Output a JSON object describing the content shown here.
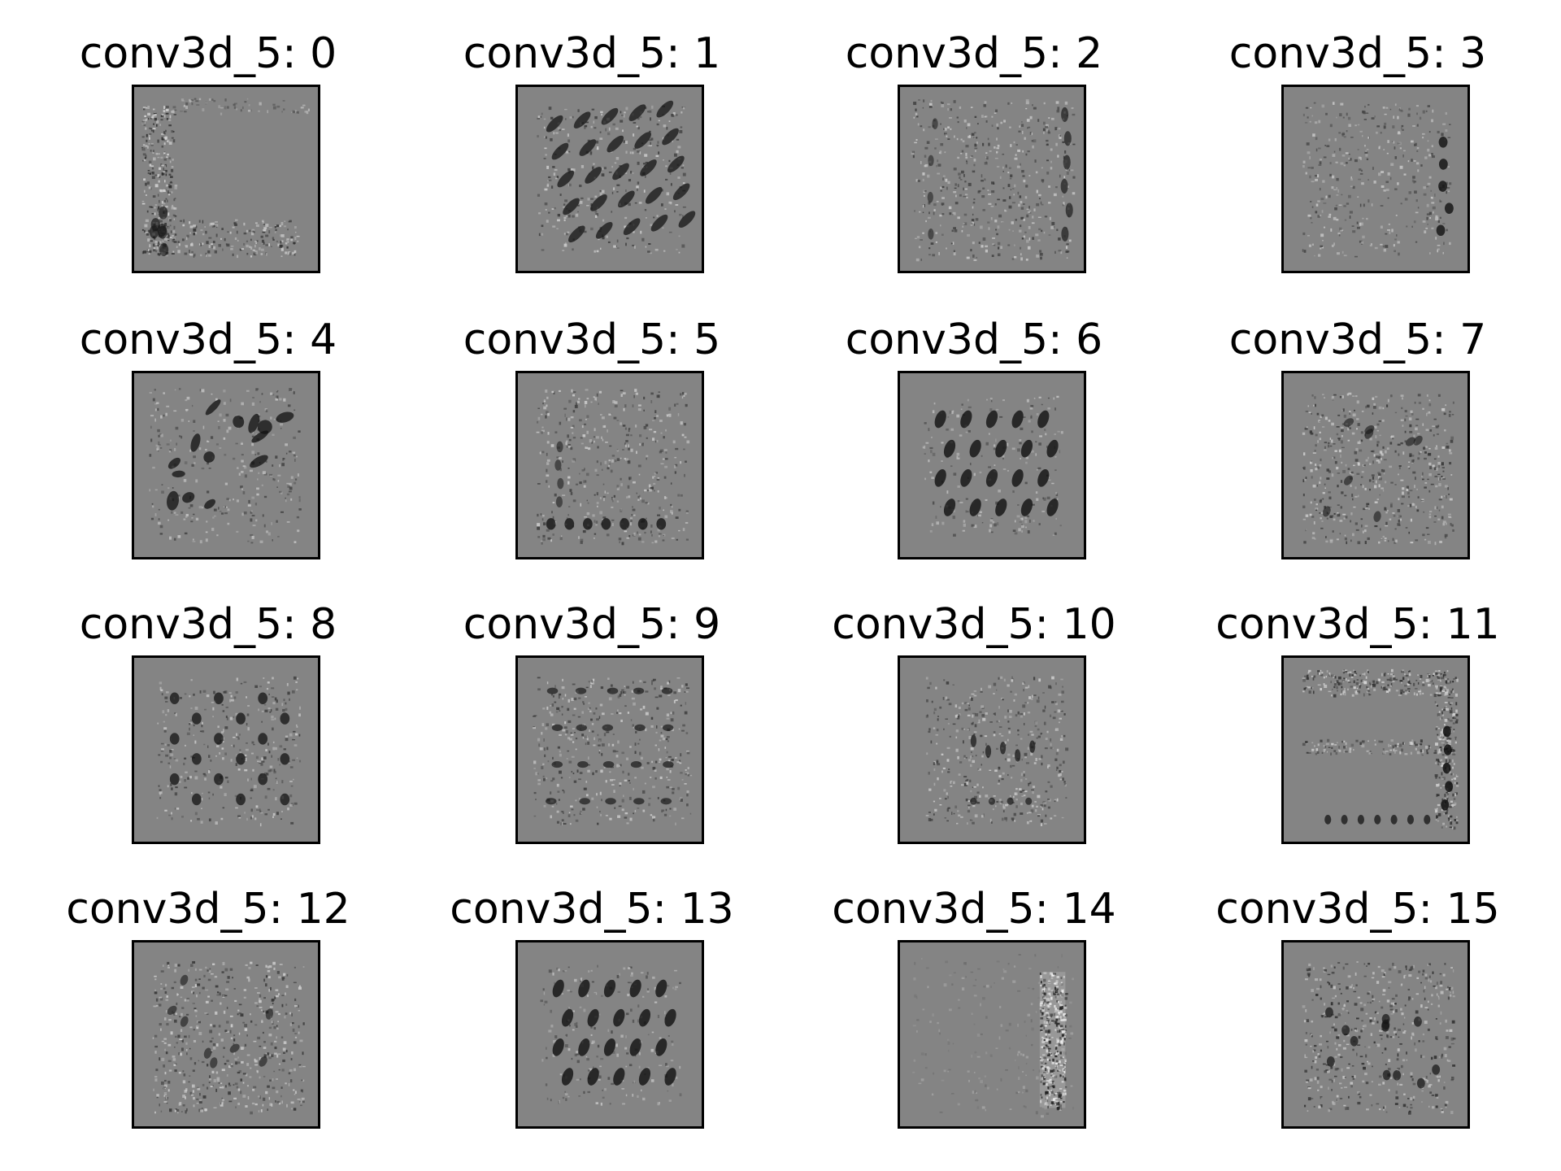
{
  "figure": {
    "panels": [
      {
        "title": "conv3d_5: 0",
        "pattern": "left-bottom-border"
      },
      {
        "title": "conv3d_5: 1",
        "pattern": "diagonal-streaks"
      },
      {
        "title": "conv3d_5: 2",
        "pattern": "dense-texture-side-dark"
      },
      {
        "title": "conv3d_5: 3",
        "pattern": "sparse-texture"
      },
      {
        "title": "conv3d_5: 4",
        "pattern": "scattered-dark-blobs"
      },
      {
        "title": "conv3d_5: 5",
        "pattern": "texture-bottom-row"
      },
      {
        "title": "conv3d_5: 6",
        "pattern": "dark-dot-grid"
      },
      {
        "title": "conv3d_5: 7",
        "pattern": "dense-texture"
      },
      {
        "title": "conv3d_5: 8",
        "pattern": "checker-dots"
      },
      {
        "title": "conv3d_5: 9",
        "pattern": "horizontal-bands"
      },
      {
        "title": "conv3d_5: 10",
        "pattern": "center-texture"
      },
      {
        "title": "conv3d_5: 11",
        "pattern": "top-right-border"
      },
      {
        "title": "conv3d_5: 12",
        "pattern": "dense-texture"
      },
      {
        "title": "conv3d_5: 13",
        "pattern": "dark-dot-grid"
      },
      {
        "title": "conv3d_5: 14",
        "pattern": "right-bright-band"
      },
      {
        "title": "conv3d_5: 15",
        "pattern": "dense-dark-texture"
      }
    ],
    "colors": {
      "background": "#ffffff",
      "image_base": "#848484",
      "frame": "#000000"
    }
  }
}
